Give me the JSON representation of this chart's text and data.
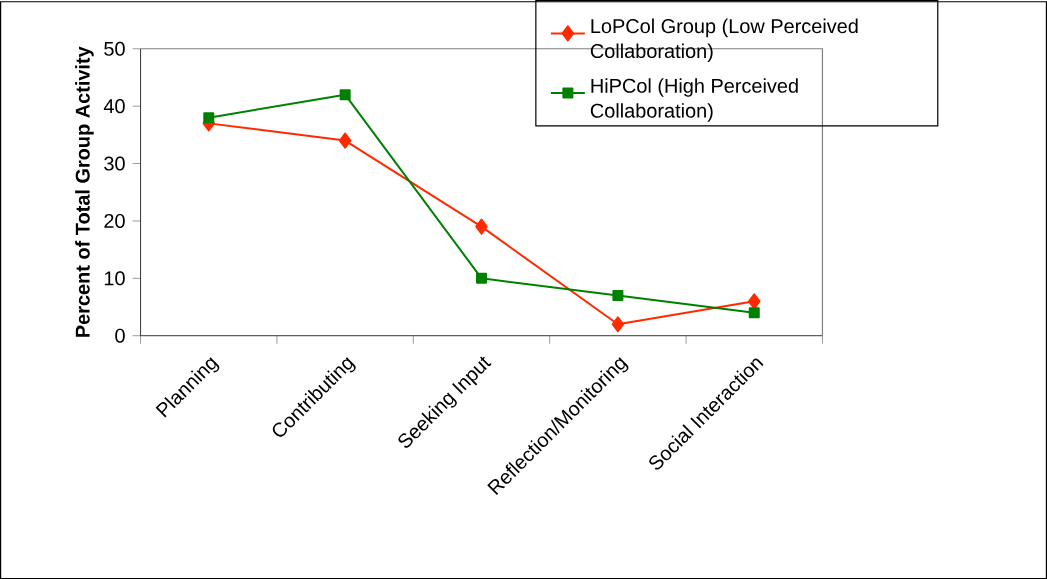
{
  "chart_data": {
    "type": "line",
    "ylabel": "Percent of Total Group Activity",
    "categories": [
      "Planning",
      "Contributing",
      "Seeking Input",
      "Reflection/Monitoring",
      "Social Interaction"
    ],
    "series": [
      {
        "name": "LoPCol Group (Low Perceived Collaboration)",
        "color": "#ff2a00",
        "marker": "diamond",
        "values": [
          37,
          34,
          19,
          2,
          6
        ]
      },
      {
        "name": "HiPCol (High Perceived Collaboration)",
        "color": "#008000",
        "marker": "square",
        "values": [
          38,
          42,
          10,
          7,
          4
        ]
      }
    ],
    "ylim": [
      0,
      50
    ],
    "yticks": [
      0,
      10,
      20,
      30,
      40,
      50
    ],
    "grid": false,
    "legend": "top right",
    "line_style": "solid"
  }
}
